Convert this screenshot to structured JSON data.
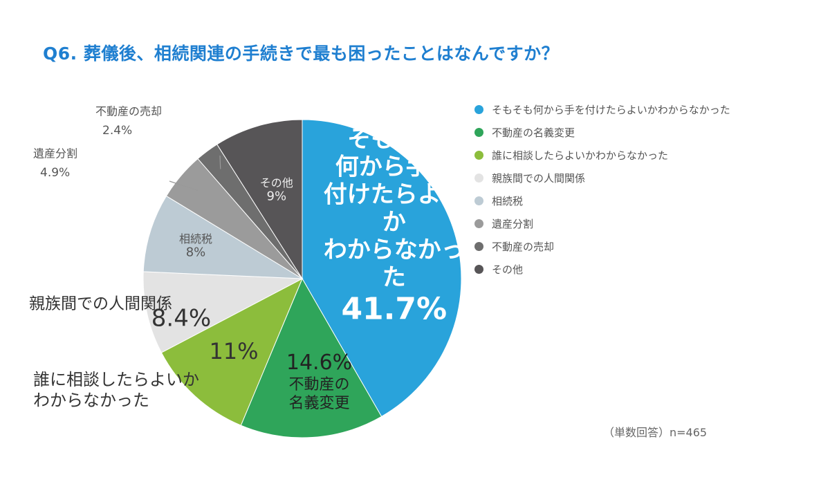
{
  "title": "Q6. 葬儀後、相続関連の手続きで最も困ったことはなんですか？",
  "note": "（単数回答）n=465",
  "chart_data": {
    "type": "pie",
    "slices": [
      {
        "label": "そもそも何から手を付けたらよいかわからなかった",
        "value": 41.7,
        "pct_label": "41.7%",
        "color": "#29a3db",
        "chart_lines": [
          "そもそも",
          "何から手を",
          "付けたらよい",
          "か",
          "わからなかっ",
          "た"
        ]
      },
      {
        "label": "不動産の名義変更",
        "value": 14.6,
        "pct_label": "14.6%",
        "color": "#2fa55a",
        "chart_lines": [
          "不動産の",
          "名義変更"
        ]
      },
      {
        "label": "誰に相談したらよいかわからなかった",
        "value": 11,
        "pct_label": "11%",
        "color": "#8cbd3c",
        "chart_lines": [
          "誰に相談したらよいか",
          "わからなかった"
        ]
      },
      {
        "label": "親族間での人間関係",
        "value": 8.4,
        "pct_label": "8.4%",
        "color": "#e3e3e3",
        "chart_lines": [
          "親族間での人間関係"
        ]
      },
      {
        "label": "相続税",
        "value": 8,
        "pct_label": "8%",
        "color": "#bdcbd4",
        "chart_lines": [
          "相続税"
        ]
      },
      {
        "label": "遺産分割",
        "value": 4.9,
        "pct_label": "4.9%",
        "color": "#9b9b9b",
        "chart_lines": [
          "遺産分割"
        ]
      },
      {
        "label": "不動産の売却",
        "value": 2.4,
        "pct_label": "2.4%",
        "color": "#6e6e6e",
        "chart_lines": [
          "不動産の売却"
        ]
      },
      {
        "label": "その他",
        "value": 9,
        "pct_label": "9%",
        "color": "#575557",
        "chart_lines": [
          "その他"
        ]
      }
    ],
    "legend_position": "right"
  }
}
